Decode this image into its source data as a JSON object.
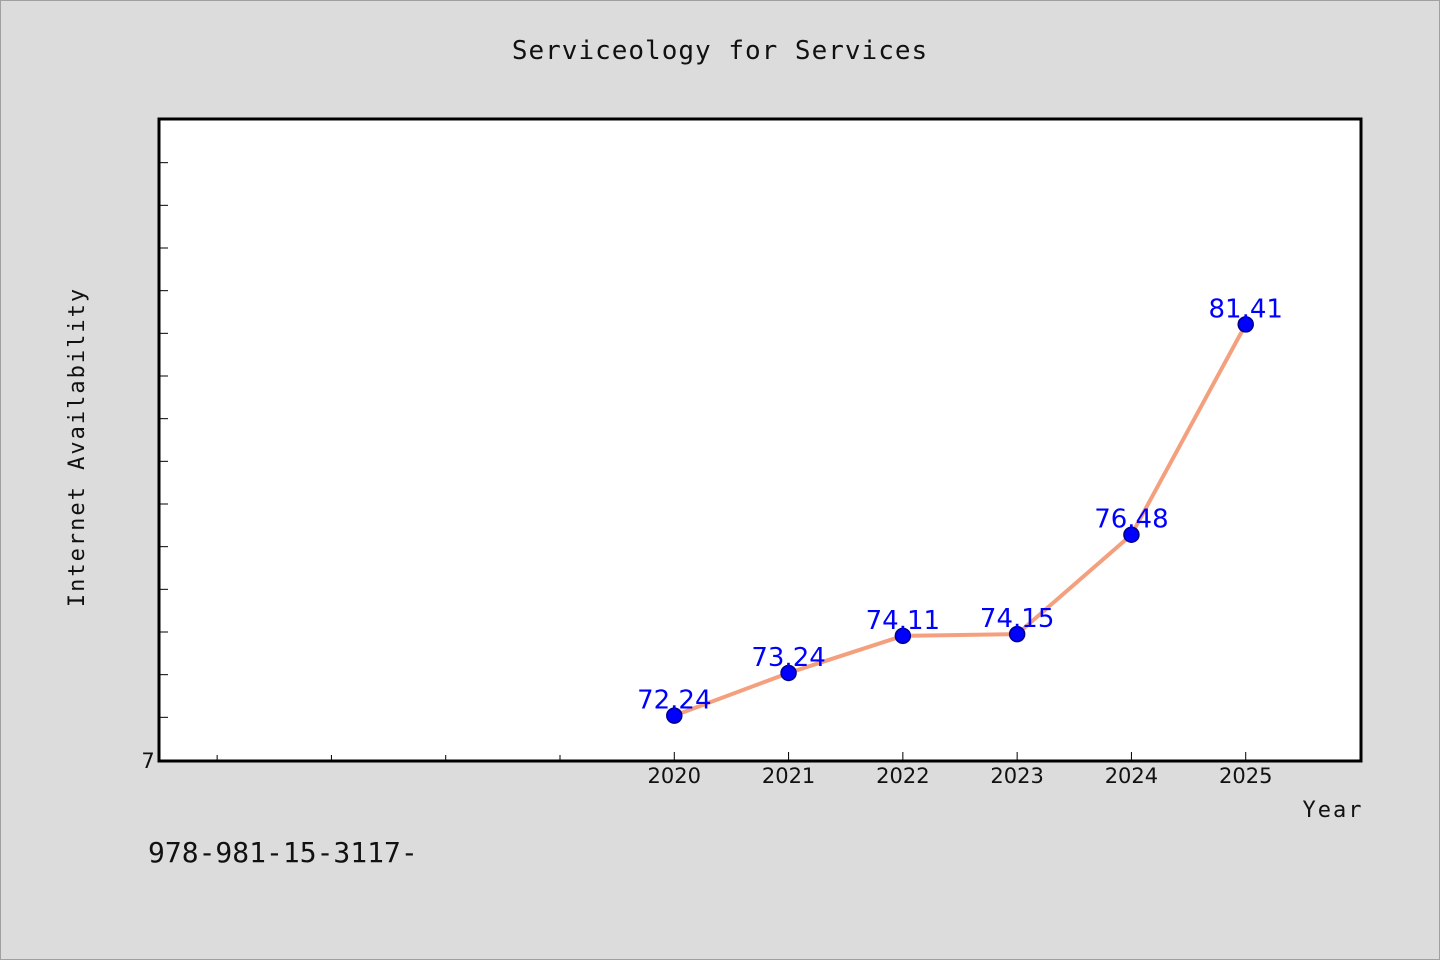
{
  "title": "Serviceology for Services",
  "footer_text": "978-981-15-3117-",
  "chart_data": {
    "type": "line",
    "title": "Serviceology for Services",
    "xlabel": "Year",
    "ylabel": "Internet Availability",
    "x": [
      2020,
      2021,
      2022,
      2023,
      2024,
      2025
    ],
    "series": [
      {
        "values": [
          72.24,
          73.24,
          74.11,
          74.15,
          76.48,
          81.41
        ]
      }
    ],
    "data_labels": [
      "72.24",
      "73.24",
      "74.11",
      "74.15",
      "76.48",
      "81.41"
    ],
    "x_tick_labels": [
      "2020",
      "2021",
      "2022",
      "2023",
      "2024",
      "2025"
    ],
    "y_tick_labels": [
      "7"
    ],
    "xlim": [
      2015.5,
      2026
    ],
    "ylim": [
      71.2,
      86.2
    ],
    "grid": false,
    "colors": {
      "line": "#f4a07e",
      "marker": "#0000ff",
      "marker_edge": "#00008b",
      "data_label": "#0000ff"
    }
  }
}
